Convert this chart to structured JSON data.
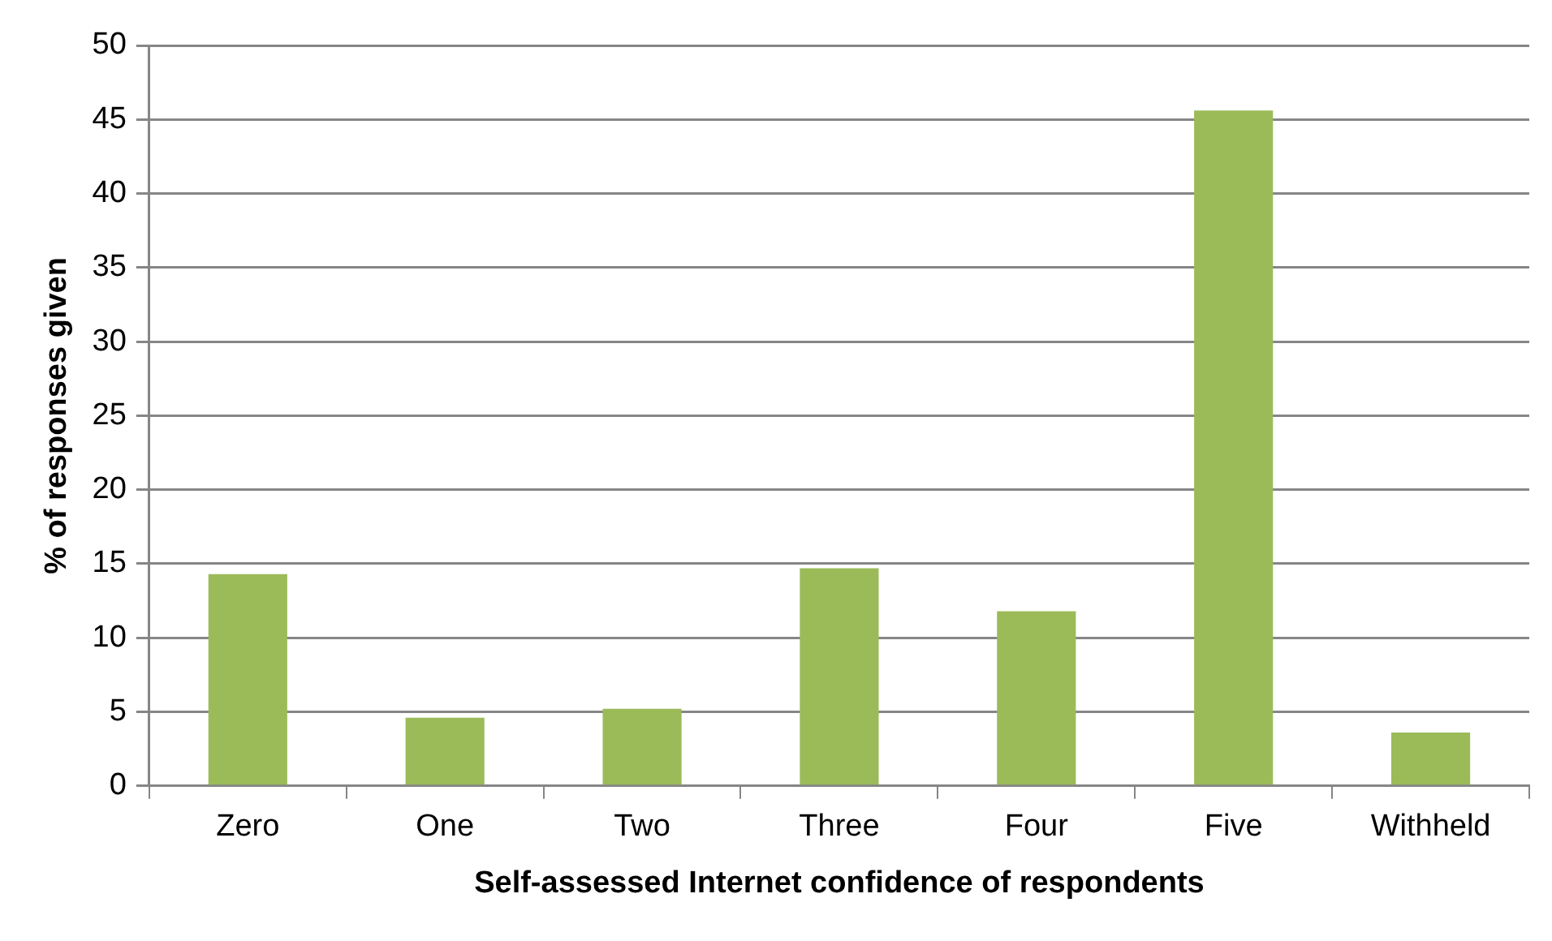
{
  "chart_data": {
    "type": "bar",
    "xlabel": "Self-assessed Internet confidence of respondents",
    "ylabel": "% of responses given",
    "categories": [
      "Zero",
      "One",
      "Two",
      "Three",
      "Four",
      "Five",
      "Withheld"
    ],
    "values": [
      14.3,
      4.6,
      5.2,
      14.7,
      11.8,
      45.6,
      3.6
    ],
    "color": "#9bbb59",
    "ylim": [
      0,
      50
    ],
    "yticks": [
      0,
      5,
      10,
      15,
      20,
      25,
      30,
      35,
      40,
      45,
      50
    ],
    "grid": "y",
    "legend": false
  }
}
